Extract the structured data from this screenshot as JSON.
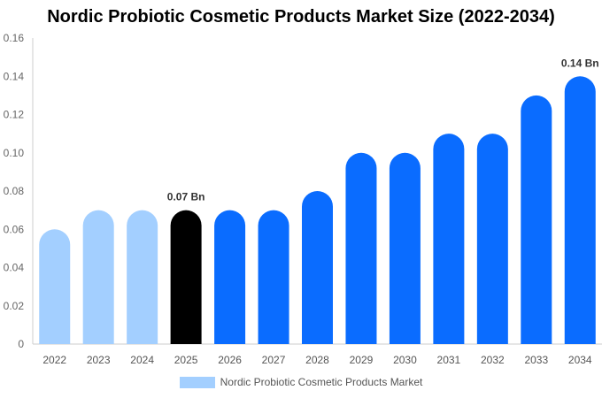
{
  "chart_data": {
    "type": "bar",
    "title": "Nordic Probiotic Cosmetic Products Market Size (2022-2034)",
    "categories": [
      "2022",
      "2023",
      "2024",
      "2025",
      "2026",
      "2027",
      "2028",
      "2029",
      "2030",
      "2031",
      "2032",
      "2033",
      "2034"
    ],
    "series": [
      {
        "name": "Nordic Probiotic Cosmetic Products Market",
        "values": [
          0.06,
          0.07,
          0.07,
          0.07,
          0.07,
          0.07,
          0.08,
          0.1,
          0.1,
          0.11,
          0.11,
          0.13,
          0.14
        ]
      }
    ],
    "data_labels": [
      {
        "category": "2025",
        "text": "0.07 Bn"
      },
      {
        "category": "2034",
        "text": "0.14 Bn"
      }
    ],
    "y_ticks": [
      "0",
      "0.02",
      "0.04",
      "0.06",
      "0.08",
      "0.10",
      "0.12",
      "0.14",
      "0.16"
    ],
    "ylim": [
      0,
      0.16
    ],
    "bar_colors": {
      "historical": "#a3cfff",
      "base_year": "#000000",
      "forecast": "#0a6cff"
    },
    "historical_categories": [
      "2022",
      "2023",
      "2024"
    ],
    "base_year": "2025",
    "legend_placement": "bottom-center",
    "grid": false
  }
}
